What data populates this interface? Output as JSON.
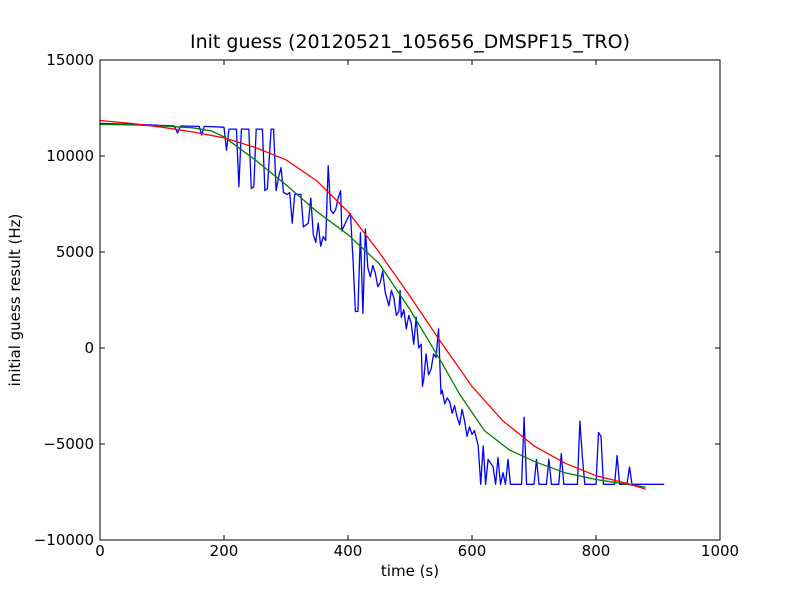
{
  "chart_data": {
    "type": "line",
    "title": "Init guess (20120521_105656_DMSPF15_TRO)",
    "xlabel": "time (s)",
    "ylabel": "initial guess result (Hz)",
    "xlim": [
      0,
      1000
    ],
    "ylim": [
      -10000,
      15000
    ],
    "x_ticks": [
      0,
      200,
      400,
      600,
      800,
      1000
    ],
    "x_tick_labels": [
      "0",
      "200",
      "400",
      "600",
      "800",
      "1000"
    ],
    "y_ticks": [
      -10000,
      -5000,
      0,
      5000,
      10000,
      15000
    ],
    "y_tick_labels": [
      "−10000",
      "−5000",
      "0",
      "5000",
      "10000",
      "15000"
    ],
    "grid": false,
    "legend": "none",
    "series": [
      {
        "color": "#0000ff",
        "style": "measured",
        "points": [
          [
            0,
            11700
          ],
          [
            40,
            11660
          ],
          [
            80,
            11620
          ],
          [
            120,
            11560
          ],
          [
            125,
            11200
          ],
          [
            130,
            11560
          ],
          [
            160,
            11540
          ],
          [
            164,
            11100
          ],
          [
            168,
            11540
          ],
          [
            200,
            11500
          ],
          [
            204,
            10300
          ],
          [
            208,
            11400
          ],
          [
            220,
            11400
          ],
          [
            224,
            8400
          ],
          [
            228,
            11400
          ],
          [
            240,
            11400
          ],
          [
            244,
            8300
          ],
          [
            248,
            8400
          ],
          [
            252,
            11400
          ],
          [
            262,
            11400
          ],
          [
            266,
            8200
          ],
          [
            270,
            8300
          ],
          [
            276,
            11400
          ],
          [
            280,
            11400
          ],
          [
            284,
            8200
          ],
          [
            288,
            8900
          ],
          [
            292,
            9400
          ],
          [
            296,
            8100
          ],
          [
            302,
            8000
          ],
          [
            306,
            8100
          ],
          [
            310,
            6500
          ],
          [
            314,
            8000
          ],
          [
            324,
            8000
          ],
          [
            328,
            6300
          ],
          [
            332,
            6400
          ],
          [
            336,
            6500
          ],
          [
            340,
            7800
          ],
          [
            344,
            5900
          ],
          [
            348,
            5500
          ],
          [
            352,
            6500
          ],
          [
            356,
            5300
          ],
          [
            360,
            5800
          ],
          [
            364,
            5600
          ],
          [
            368,
            9500
          ],
          [
            372,
            7200
          ],
          [
            376,
            7000
          ],
          [
            380,
            7200
          ],
          [
            384,
            7800
          ],
          [
            388,
            8200
          ],
          [
            390,
            6100
          ],
          [
            400,
            6800
          ],
          [
            404,
            7000
          ],
          [
            408,
            4600
          ],
          [
            412,
            1900
          ],
          [
            416,
            1900
          ],
          [
            420,
            6000
          ],
          [
            424,
            1800
          ],
          [
            428,
            6200
          ],
          [
            432,
            4200
          ],
          [
            436,
            3700
          ],
          [
            440,
            4300
          ],
          [
            444,
            3900
          ],
          [
            448,
            3200
          ],
          [
            452,
            3400
          ],
          [
            456,
            4000
          ],
          [
            460,
            2900
          ],
          [
            466,
            2200
          ],
          [
            470,
            3000
          ],
          [
            474,
            2600
          ],
          [
            478,
            1700
          ],
          [
            482,
            1900
          ],
          [
            484,
            3000
          ],
          [
            486,
            1600
          ],
          [
            490,
            2000
          ],
          [
            494,
            1000
          ],
          [
            498,
            1700
          ],
          [
            502,
            1300
          ],
          [
            506,
            200
          ],
          [
            510,
            1600
          ],
          [
            514,
            0
          ],
          [
            518,
            200
          ],
          [
            520,
            -2000
          ],
          [
            522,
            -1700
          ],
          [
            526,
            -300
          ],
          [
            530,
            -1400
          ],
          [
            534,
            -1100
          ],
          [
            538,
            -300
          ],
          [
            542,
            -500
          ],
          [
            546,
            1000
          ],
          [
            550,
            -2400
          ],
          [
            552,
            -2200
          ],
          [
            556,
            -2900
          ],
          [
            560,
            -2600
          ],
          [
            564,
            -2800
          ],
          [
            568,
            -3400
          ],
          [
            572,
            -3000
          ],
          [
            576,
            -3600
          ],
          [
            580,
            -4000
          ],
          [
            584,
            -3200
          ],
          [
            588,
            -3800
          ],
          [
            592,
            -4600
          ],
          [
            596,
            -4100
          ],
          [
            600,
            -4500
          ],
          [
            604,
            -4300
          ],
          [
            610,
            -5100
          ],
          [
            614,
            -7100
          ],
          [
            618,
            -5100
          ],
          [
            622,
            -7100
          ],
          [
            626,
            -5800
          ],
          [
            630,
            -6000
          ],
          [
            634,
            -6200
          ],
          [
            638,
            -7100
          ],
          [
            642,
            -5700
          ],
          [
            646,
            -7100
          ],
          [
            650,
            -6500
          ],
          [
            654,
            -7100
          ],
          [
            658,
            -5800
          ],
          [
            662,
            -7100
          ],
          [
            680,
            -7100
          ],
          [
            684,
            -3600
          ],
          [
            688,
            -7100
          ],
          [
            700,
            -7100
          ],
          [
            704,
            -5800
          ],
          [
            708,
            -7100
          ],
          [
            720,
            -7100
          ],
          [
            724,
            -5800
          ],
          [
            728,
            -7100
          ],
          [
            740,
            -7100
          ],
          [
            744,
            -5500
          ],
          [
            748,
            -7100
          ],
          [
            770,
            -7100
          ],
          [
            774,
            -3800
          ],
          [
            778,
            -5700
          ],
          [
            782,
            -7100
          ],
          [
            800,
            -7100
          ],
          [
            804,
            -4400
          ],
          [
            808,
            -4600
          ],
          [
            812,
            -7100
          ],
          [
            830,
            -7100
          ],
          [
            834,
            -5600
          ],
          [
            838,
            -7100
          ],
          [
            850,
            -7100
          ],
          [
            854,
            -6200
          ],
          [
            858,
            -7100
          ],
          [
            910,
            -7100
          ]
        ]
      },
      {
        "color": "#008000",
        "style": "fit",
        "points": [
          [
            0,
            11650
          ],
          [
            50,
            11620
          ],
          [
            100,
            11560
          ],
          [
            150,
            11470
          ],
          [
            180,
            11300
          ],
          [
            200,
            11000
          ],
          [
            250,
            9800
          ],
          [
            300,
            8500
          ],
          [
            350,
            7100
          ],
          [
            400,
            5900
          ],
          [
            450,
            4400
          ],
          [
            500,
            2000
          ],
          [
            550,
            -700
          ],
          [
            580,
            -2400
          ],
          [
            620,
            -4300
          ],
          [
            660,
            -5300
          ],
          [
            700,
            -5900
          ],
          [
            750,
            -6500
          ],
          [
            800,
            -6850
          ],
          [
            850,
            -7100
          ],
          [
            880,
            -7250
          ]
        ]
      },
      {
        "color": "#ff0000",
        "style": "fit",
        "points": [
          [
            0,
            11850
          ],
          [
            50,
            11700
          ],
          [
            100,
            11500
          ],
          [
            150,
            11250
          ],
          [
            200,
            10950
          ],
          [
            250,
            10450
          ],
          [
            300,
            9800
          ],
          [
            350,
            8700
          ],
          [
            400,
            7100
          ],
          [
            450,
            5000
          ],
          [
            500,
            2700
          ],
          [
            550,
            300
          ],
          [
            600,
            -2000
          ],
          [
            650,
            -3800
          ],
          [
            700,
            -5100
          ],
          [
            750,
            -6000
          ],
          [
            800,
            -6650
          ],
          [
            850,
            -7050
          ],
          [
            880,
            -7350
          ]
        ]
      }
    ]
  }
}
